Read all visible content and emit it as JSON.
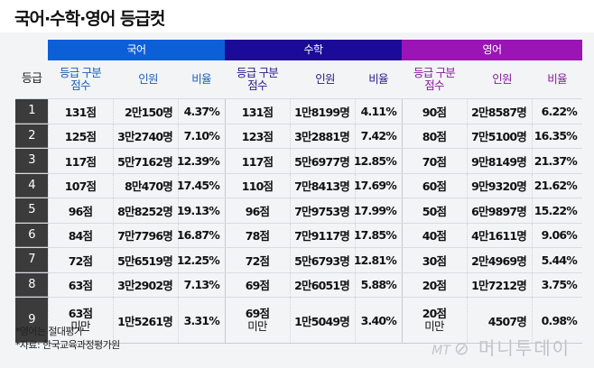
{
  "title": "국어·수학·영어 등급컷",
  "colors": {
    "korean": "#0d5fd8",
    "math": "#1b0b98",
    "english": "#9a14b6",
    "korean_text": "#1a5fb8",
    "math_text": "#2a1a8c",
    "english_text": "#8a1a9e",
    "grade_bg": "#3b3b3b"
  },
  "header": {
    "grade_label": "등급",
    "subjects": [
      {
        "name": "국어",
        "cols": {
          "score": "등급 구분\n점수",
          "score_line1": "등급 구분",
          "score_line2": "점수",
          "count": "인원",
          "ratio": "비율"
        }
      },
      {
        "name": "수학",
        "cols": {
          "score_line1": "등급 구분",
          "score_line2": "점수",
          "count": "인원",
          "ratio": "비율"
        }
      },
      {
        "name": "영어",
        "cols": {
          "score_line1": "등급 구분",
          "score_line2": "점수",
          "count": "인원",
          "ratio": "비율"
        }
      }
    ]
  },
  "rows": [
    {
      "grade": "1",
      "kor": {
        "score": "131점",
        "count": "2만150명",
        "ratio": "4.37%"
      },
      "math": {
        "score": "131점",
        "count": "1만8199명",
        "ratio": "4.11%"
      },
      "eng": {
        "score": "90점",
        "count": "2만8587명",
        "ratio": "6.22%"
      }
    },
    {
      "grade": "2",
      "kor": {
        "score": "125점",
        "count": "3만2740명",
        "ratio": "7.10%"
      },
      "math": {
        "score": "123점",
        "count": "3만2881명",
        "ratio": "7.42%"
      },
      "eng": {
        "score": "80점",
        "count": "7만5100명",
        "ratio": "16.35%"
      }
    },
    {
      "grade": "3",
      "kor": {
        "score": "117점",
        "count": "5만7162명",
        "ratio": "12.39%"
      },
      "math": {
        "score": "117점",
        "count": "5만6977명",
        "ratio": "12.85%"
      },
      "eng": {
        "score": "70점",
        "count": "9만8149명",
        "ratio": "21.37%"
      }
    },
    {
      "grade": "4",
      "kor": {
        "score": "107점",
        "count": "8만470명",
        "ratio": "17.45%"
      },
      "math": {
        "score": "110점",
        "count": "7만8413명",
        "ratio": "17.69%"
      },
      "eng": {
        "score": "60점",
        "count": "9만9320명",
        "ratio": "21.62%"
      }
    },
    {
      "grade": "5",
      "kor": {
        "score": "96점",
        "count": "8만8252명",
        "ratio": "19.13%"
      },
      "math": {
        "score": "96점",
        "count": "7만9753명",
        "ratio": "17.99%"
      },
      "eng": {
        "score": "50점",
        "count": "6만9897명",
        "ratio": "15.22%"
      }
    },
    {
      "grade": "6",
      "kor": {
        "score": "84점",
        "count": "7만7796명",
        "ratio": "16.87%"
      },
      "math": {
        "score": "78점",
        "count": "7만9117명",
        "ratio": "17.85%"
      },
      "eng": {
        "score": "40점",
        "count": "4만1611명",
        "ratio": "9.06%"
      }
    },
    {
      "grade": "7",
      "kor": {
        "score": "72점",
        "count": "5만6519명",
        "ratio": "12.25%"
      },
      "math": {
        "score": "72점",
        "count": "5만6793명",
        "ratio": "12.81%"
      },
      "eng": {
        "score": "30점",
        "count": "2만4969명",
        "ratio": "5.44%"
      }
    },
    {
      "grade": "8",
      "kor": {
        "score": "63점",
        "count": "3만2902명",
        "ratio": "7.13%"
      },
      "math": {
        "score": "69점",
        "count": "2만6051명",
        "ratio": "5.88%"
      },
      "eng": {
        "score": "20점",
        "count": "1만7212명",
        "ratio": "3.75%"
      }
    },
    {
      "grade": "9",
      "kor": {
        "score": "63점",
        "score_suffix": "미만",
        "count": "1만5261명",
        "ratio": "3.31%"
      },
      "math": {
        "score": "69점",
        "score_suffix": "미만",
        "count": "1만5049명",
        "ratio": "3.40%"
      },
      "eng": {
        "score": "20점",
        "score_suffix": "미만",
        "count": "4507명",
        "ratio": "0.98%"
      }
    }
  ],
  "notes": [
    "*영어는 절대평가",
    "*자료: 한국교육과정평가원"
  ],
  "watermark": {
    "mt": "MT",
    "logo": "⊘",
    "text": "머니투데이"
  }
}
